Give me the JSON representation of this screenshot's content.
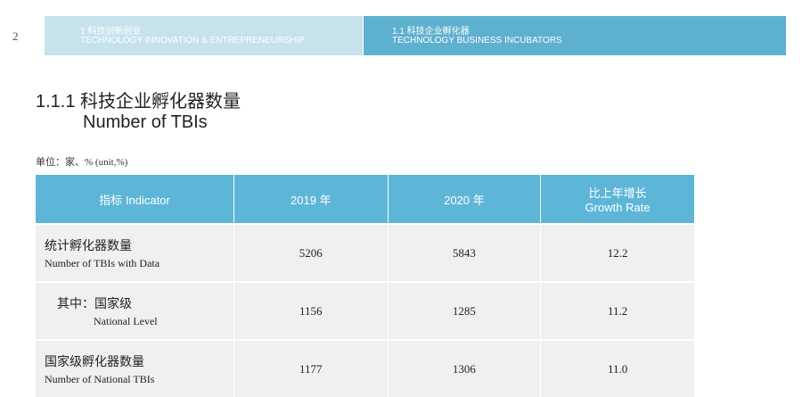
{
  "header": {
    "page_number": "2",
    "chapter_zh": "1 科技创新创业",
    "chapter_en": "TECHNOLOGY INNOVATION & ENTREPRENEURSHIP",
    "section_zh": "1.1 科技企业孵化器",
    "section_en": "TECHNOLOGY BUSINESS INCUBATORS"
  },
  "title": {
    "zh": "1.1.1 科技企业孵化器数量",
    "en": "Number of TBIs"
  },
  "unit": "单位：家、% (unit,%)",
  "table": {
    "headers": [
      "指标 Indicator",
      "2019 年",
      "2020 年",
      "比上年增长",
      "Growth Rate"
    ],
    "rows": [
      {
        "zh": "统计孵化器数量",
        "en": "Number of TBIs with Data",
        "v2019": "5206",
        "v2020": "5843",
        "growth": "12.2"
      },
      {
        "zh": "其中：国家级",
        "en": "National Level",
        "v2019": "1156",
        "v2020": "1285",
        "growth": "11.2"
      },
      {
        "zh": "国家级孵化器数量",
        "en": "Number of National TBIs",
        "v2019": "1177",
        "v2020": "1306",
        "growth": "11.0"
      }
    ]
  }
}
